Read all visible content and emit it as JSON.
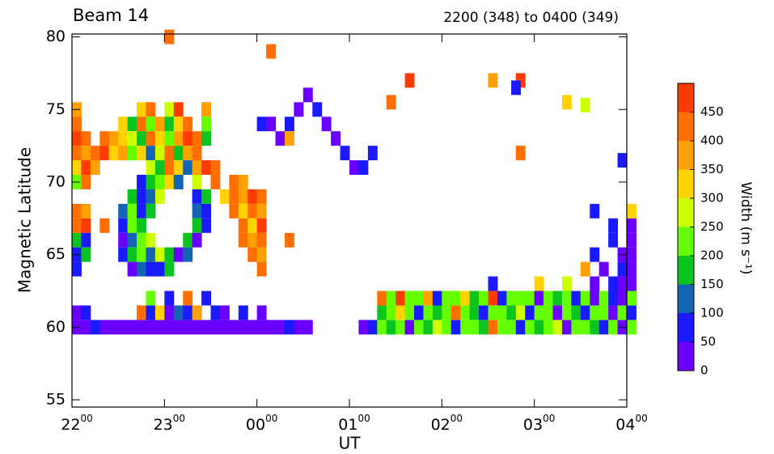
{
  "chart_data": {
    "type": "heatmap",
    "title": "Beam 14",
    "subtitle": "2200 (348) to 0400 (349)",
    "xlabel": "UT",
    "ylabel": "Magnetic Latitude",
    "xlim": [
      22,
      28
    ],
    "xticks": [
      {
        "value": 22,
        "label": "22",
        "sup": "00"
      },
      {
        "value": 23,
        "label": "23",
        "sup": "00"
      },
      {
        "value": 24,
        "label": "00",
        "sup": "00"
      },
      {
        "value": 25,
        "label": "01",
        "sup": "00"
      },
      {
        "value": 26,
        "label": "02",
        "sup": "00"
      },
      {
        "value": 27,
        "label": "03",
        "sup": "00"
      },
      {
        "value": 28,
        "label": "04",
        "sup": "00"
      }
    ],
    "ylim": [
      54.5,
      80.2
    ],
    "yticks": [
      55,
      60,
      65,
      70,
      75,
      80
    ],
    "colorbar_label": "Width (m s⁻¹)",
    "levels": [
      0,
      50,
      100,
      150,
      200,
      250,
      300,
      350,
      400,
      450,
      500
    ],
    "colorbar_ticks": [
      0,
      50,
      100,
      150,
      200,
      250,
      300,
      350,
      400,
      450
    ],
    "colors": [
      "#6a00ff",
      "#1a1aff",
      "#1464b4",
      "#0cc41f",
      "#66ff00",
      "#ccff00",
      "#ffd200",
      "#ff9f00",
      "#ff6e00",
      "#ff3c00"
    ],
    "cells": [
      [
        22.0,
        75,
        380
      ],
      [
        22.7,
        75,
        300
      ],
      [
        22.8,
        75,
        420
      ],
      [
        23.0,
        75,
        250
      ],
      [
        23.1,
        75,
        450
      ],
      [
        23.4,
        75,
        350
      ],
      [
        22.0,
        74,
        420
      ],
      [
        22.5,
        74,
        300
      ],
      [
        22.6,
        74,
        180
      ],
      [
        22.7,
        74,
        400
      ],
      [
        22.8,
        74,
        220
      ],
      [
        22.9,
        74,
        350
      ],
      [
        23.0,
        74,
        150
      ],
      [
        23.1,
        74,
        300
      ],
      [
        23.2,
        74,
        420
      ],
      [
        23.4,
        74,
        200
      ],
      [
        22.0,
        73,
        450
      ],
      [
        22.1,
        73,
        400
      ],
      [
        22.3,
        73,
        420
      ],
      [
        22.4,
        73,
        380
      ],
      [
        22.5,
        73,
        300
      ],
      [
        22.6,
        73,
        250
      ],
      [
        22.7,
        73,
        150
      ],
      [
        22.8,
        73,
        400
      ],
      [
        22.9,
        73,
        320
      ],
      [
        23.0,
        73,
        220
      ],
      [
        23.1,
        73,
        380
      ],
      [
        23.2,
        73,
        450
      ],
      [
        23.3,
        73,
        420
      ],
      [
        23.4,
        73,
        180
      ],
      [
        22.0,
        72,
        400
      ],
      [
        22.1,
        72,
        350
      ],
      [
        22.2,
        72,
        420
      ],
      [
        22.3,
        72,
        450
      ],
      [
        22.4,
        72,
        300
      ],
      [
        22.5,
        72,
        380
      ],
      [
        22.6,
        72,
        200
      ],
      [
        22.7,
        72,
        320
      ],
      [
        22.8,
        72,
        120
      ],
      [
        22.9,
        72,
        280
      ],
      [
        23.0,
        72,
        400
      ],
      [
        23.1,
        72,
        180
      ],
      [
        23.2,
        72,
        350
      ],
      [
        23.3,
        72,
        420
      ],
      [
        22.0,
        71,
        300
      ],
      [
        22.1,
        71,
        450
      ],
      [
        22.2,
        71,
        380
      ],
      [
        22.8,
        71,
        250
      ],
      [
        22.9,
        71,
        150
      ],
      [
        23.0,
        71,
        420
      ],
      [
        23.1,
        71,
        300
      ],
      [
        23.2,
        71,
        100
      ],
      [
        23.3,
        71,
        380
      ],
      [
        23.4,
        71,
        450
      ],
      [
        23.5,
        71,
        400
      ],
      [
        22.0,
        70,
        200
      ],
      [
        22.1,
        70,
        420
      ],
      [
        22.7,
        70,
        80
      ],
      [
        22.8,
        70,
        150
      ],
      [
        22.9,
        70,
        220
      ],
      [
        23.0,
        70,
        300
      ],
      [
        23.1,
        70,
        120
      ],
      [
        23.3,
        70,
        250
      ],
      [
        23.5,
        70,
        420
      ],
      [
        23.7,
        70,
        400
      ],
      [
        23.8,
        70,
        350
      ],
      [
        22.6,
        69,
        180
      ],
      [
        22.7,
        69,
        60
      ],
      [
        22.8,
        69,
        120
      ],
      [
        22.9,
        69,
        250
      ],
      [
        23.3,
        69,
        80
      ],
      [
        23.4,
        69,
        150
      ],
      [
        23.6,
        69,
        300
      ],
      [
        23.7,
        69,
        420
      ],
      [
        23.8,
        69,
        380
      ],
      [
        23.9,
        69,
        450
      ],
      [
        24.0,
        69,
        400
      ],
      [
        22.0,
        68,
        420
      ],
      [
        22.1,
        68,
        380
      ],
      [
        22.5,
        68,
        120
      ],
      [
        22.6,
        68,
        200
      ],
      [
        22.7,
        68,
        50
      ],
      [
        22.8,
        68,
        150
      ],
      [
        23.3,
        68,
        100
      ],
      [
        23.4,
        68,
        60
      ],
      [
        23.7,
        68,
        400
      ],
      [
        23.8,
        68,
        300
      ],
      [
        23.9,
        68,
        420
      ],
      [
        24.0,
        68,
        350
      ],
      [
        22.0,
        67,
        400
      ],
      [
        22.1,
        67,
        450
      ],
      [
        22.3,
        67,
        420
      ],
      [
        22.5,
        67,
        80
      ],
      [
        22.6,
        67,
        220
      ],
      [
        22.7,
        67,
        150
      ],
      [
        23.3,
        67,
        180
      ],
      [
        23.4,
        67,
        50
      ],
      [
        23.8,
        67,
        420
      ],
      [
        23.9,
        67,
        300
      ],
      [
        24.0,
        67,
        450
      ],
      [
        22.0,
        66,
        150
      ],
      [
        22.1,
        66,
        60
      ],
      [
        22.5,
        66,
        40
      ],
      [
        22.6,
        66,
        120
      ],
      [
        22.7,
        66,
        200
      ],
      [
        22.8,
        66,
        250
      ],
      [
        23.2,
        66,
        150
      ],
      [
        23.3,
        66,
        40
      ],
      [
        23.8,
        66,
        400
      ],
      [
        23.9,
        66,
        380
      ],
      [
        24.0,
        66,
        420
      ],
      [
        22.0,
        65,
        80
      ],
      [
        22.1,
        65,
        180
      ],
      [
        22.5,
        65,
        60
      ],
      [
        22.6,
        65,
        150
      ],
      [
        22.7,
        65,
        220
      ],
      [
        22.8,
        65,
        100
      ],
      [
        22.9,
        65,
        250
      ],
      [
        23.0,
        65,
        180
      ],
      [
        23.1,
        65,
        40
      ],
      [
        23.2,
        65,
        120
      ],
      [
        23.9,
        65,
        420
      ],
      [
        24.0,
        65,
        380
      ],
      [
        22.0,
        64,
        50
      ],
      [
        22.6,
        64,
        40
      ],
      [
        22.7,
        64,
        120
      ],
      [
        22.8,
        64,
        80
      ],
      [
        22.9,
        64,
        60
      ],
      [
        23.0,
        64,
        150
      ],
      [
        24.0,
        64,
        400
      ],
      [
        22.0,
        60,
        40
      ],
      [
        22.1,
        60,
        30
      ],
      [
        22.2,
        60,
        60
      ],
      [
        22.3,
        60,
        30
      ],
      [
        22.4,
        60,
        20
      ],
      [
        22.5,
        60,
        30
      ],
      [
        22.6,
        60,
        40
      ],
      [
        22.7,
        60,
        30
      ],
      [
        22.8,
        60,
        20
      ],
      [
        22.9,
        60,
        30
      ],
      [
        23.0,
        60,
        30
      ],
      [
        23.1,
        60,
        20
      ],
      [
        23.2,
        60,
        30
      ],
      [
        23.3,
        60,
        30
      ],
      [
        23.4,
        60,
        20
      ],
      [
        23.5,
        60,
        30
      ],
      [
        23.6,
        60,
        30
      ],
      [
        23.7,
        60,
        20
      ],
      [
        23.8,
        60,
        30
      ],
      [
        23.9,
        60,
        30
      ],
      [
        24.0,
        60,
        40
      ],
      [
        24.1,
        60,
        30
      ],
      [
        24.2,
        60,
        20
      ],
      [
        24.3,
        60,
        60
      ],
      [
        24.4,
        60,
        30
      ],
      [
        24.5,
        60,
        40
      ],
      [
        22.0,
        61,
        40
      ],
      [
        22.1,
        61,
        60
      ],
      [
        22.7,
        61,
        400
      ],
      [
        22.8,
        61,
        80
      ],
      [
        22.9,
        61,
        300
      ],
      [
        23.0,
        61,
        40
      ],
      [
        23.1,
        61,
        120
      ],
      [
        23.2,
        61,
        60
      ],
      [
        23.3,
        61,
        350
      ],
      [
        23.5,
        61,
        50
      ],
      [
        23.6,
        61,
        40
      ],
      [
        23.8,
        61,
        60
      ],
      [
        24.0,
        61,
        40
      ],
      [
        22.8,
        62,
        200
      ],
      [
        23.0,
        62,
        50
      ],
      [
        23.2,
        62,
        400
      ],
      [
        23.4,
        62,
        60
      ],
      [
        24.0,
        74,
        60
      ],
      [
        24.1,
        74,
        40
      ],
      [
        24.2,
        73,
        30
      ],
      [
        24.3,
        74,
        50
      ],
      [
        24.4,
        75,
        40
      ],
      [
        24.5,
        76,
        30
      ],
      [
        24.6,
        75,
        60
      ],
      [
        24.7,
        74,
        40
      ],
      [
        24.8,
        73,
        30
      ],
      [
        24.9,
        72,
        50
      ],
      [
        25.0,
        71,
        40
      ],
      [
        25.1,
        71,
        60
      ],
      [
        25.2,
        72,
        80
      ],
      [
        24.3,
        73,
        350
      ],
      [
        25.1,
        60,
        40
      ],
      [
        25.2,
        60,
        60
      ],
      [
        25.3,
        60,
        200
      ],
      [
        25.4,
        60,
        180
      ],
      [
        25.5,
        60,
        220
      ],
      [
        25.6,
        60,
        40
      ],
      [
        25.7,
        60,
        230
      ],
      [
        25.8,
        60,
        190
      ],
      [
        25.9,
        60,
        260
      ],
      [
        26.0,
        60,
        200
      ],
      [
        26.1,
        60,
        80
      ],
      [
        26.2,
        60,
        210
      ],
      [
        26.3,
        60,
        240
      ],
      [
        26.4,
        60,
        180
      ],
      [
        26.5,
        60,
        400
      ],
      [
        26.6,
        60,
        220
      ],
      [
        26.7,
        60,
        200
      ],
      [
        26.8,
        60,
        60
      ],
      [
        26.9,
        60,
        230
      ],
      [
        27.0,
        60,
        190
      ],
      [
        27.1,
        60,
        210
      ],
      [
        27.2,
        60,
        280
      ],
      [
        27.3,
        60,
        40
      ],
      [
        27.4,
        60,
        220
      ],
      [
        27.5,
        60,
        200
      ],
      [
        27.6,
        60,
        180
      ],
      [
        27.7,
        60,
        60
      ],
      [
        27.8,
        60,
        230
      ],
      [
        27.9,
        60,
        40
      ],
      [
        28.0,
        60,
        200
      ],
      [
        25.3,
        61,
        180
      ],
      [
        25.4,
        61,
        220
      ],
      [
        25.5,
        61,
        300
      ],
      [
        25.6,
        61,
        200
      ],
      [
        25.7,
        61,
        60
      ],
      [
        25.8,
        61,
        240
      ],
      [
        25.9,
        61,
        190
      ],
      [
        26.0,
        61,
        220
      ],
      [
        26.1,
        61,
        420
      ],
      [
        26.2,
        61,
        200
      ],
      [
        26.3,
        61,
        180
      ],
      [
        26.4,
        61,
        60
      ],
      [
        26.5,
        61,
        230
      ],
      [
        26.6,
        61,
        210
      ],
      [
        26.7,
        61,
        190
      ],
      [
        26.8,
        61,
        250
      ],
      [
        26.9,
        61,
        80
      ],
      [
        27.0,
        61,
        220
      ],
      [
        27.1,
        61,
        200
      ],
      [
        27.2,
        61,
        40
      ],
      [
        27.3,
        61,
        230
      ],
      [
        27.4,
        61,
        190
      ],
      [
        27.5,
        61,
        60
      ],
      [
        27.6,
        61,
        220
      ],
      [
        27.7,
        61,
        200
      ],
      [
        27.8,
        61,
        40
      ],
      [
        27.9,
        61,
        210
      ],
      [
        28.0,
        61,
        60
      ],
      [
        25.3,
        62,
        400
      ],
      [
        25.4,
        62,
        200
      ],
      [
        25.5,
        62,
        450
      ],
      [
        25.6,
        62,
        240
      ],
      [
        25.7,
        62,
        210
      ],
      [
        25.8,
        62,
        380
      ],
      [
        25.9,
        62,
        60
      ],
      [
        26.0,
        62,
        230
      ],
      [
        26.1,
        62,
        200
      ],
      [
        26.2,
        62,
        300
      ],
      [
        26.3,
        62,
        190
      ],
      [
        26.4,
        62,
        220
      ],
      [
        26.5,
        62,
        450
      ],
      [
        26.6,
        62,
        60
      ],
      [
        26.7,
        62,
        210
      ],
      [
        26.8,
        62,
        240
      ],
      [
        26.9,
        62,
        200
      ],
      [
        27.0,
        62,
        40
      ],
      [
        27.1,
        62,
        230
      ],
      [
        27.2,
        62,
        190
      ],
      [
        27.3,
        62,
        220
      ],
      [
        27.4,
        62,
        60
      ],
      [
        27.5,
        62,
        200
      ],
      [
        27.6,
        62,
        40
      ],
      [
        27.7,
        62,
        230
      ],
      [
        27.8,
        62,
        60
      ],
      [
        27.9,
        62,
        40
      ],
      [
        28.0,
        62,
        200
      ],
      [
        26.5,
        63,
        60
      ],
      [
        27.0,
        63,
        300
      ],
      [
        27.3,
        63,
        250
      ],
      [
        27.6,
        63,
        40
      ],
      [
        27.8,
        63,
        60
      ],
      [
        27.9,
        63,
        30
      ],
      [
        28.0,
        63,
        40
      ],
      [
        27.5,
        64,
        350
      ],
      [
        27.7,
        64,
        40
      ],
      [
        27.9,
        64,
        60
      ],
      [
        28.0,
        64,
        40
      ],
      [
        27.6,
        65,
        60
      ],
      [
        27.9,
        65,
        40
      ],
      [
        28.0,
        65,
        30
      ],
      [
        27.8,
        66,
        50
      ],
      [
        28.0,
        66,
        40
      ],
      [
        27.8,
        67,
        60
      ],
      [
        28.0,
        67,
        40
      ],
      [
        27.6,
        68,
        80
      ],
      [
        28.0,
        68,
        300
      ],
      [
        26.5,
        77,
        350
      ],
      [
        26.8,
        77,
        450
      ],
      [
        26.75,
        76.5,
        60
      ],
      [
        27.3,
        75.5,
        300
      ],
      [
        27.5,
        75.3,
        280
      ],
      [
        25.6,
        77,
        450
      ],
      [
        24.1,
        79,
        400
      ],
      [
        26.8,
        72,
        420
      ],
      [
        27.9,
        71.5,
        60
      ],
      [
        25.4,
        75.5,
        400
      ],
      [
        24.3,
        66,
        420
      ],
      [
        23.0,
        80,
        420
      ]
    ]
  }
}
